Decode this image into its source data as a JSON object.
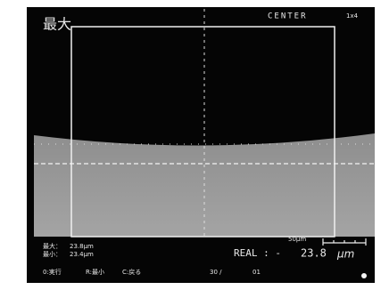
{
  "header": {
    "title": "最大",
    "mode": "CENTER",
    "zoom": "1x4"
  },
  "measurements": [
    {
      "label": "最大：",
      "value": "23.8μm"
    },
    {
      "label": "最小：",
      "value": "23.4μm"
    }
  ],
  "scale_bar": "50μm",
  "real": {
    "label": "REAL : -",
    "value": "23.8",
    "unit": "μm"
  },
  "menu": [
    "0:実行",
    "R:最小",
    "C:戻る"
  ],
  "counter": {
    "current": "30 /",
    "total": "01"
  }
}
